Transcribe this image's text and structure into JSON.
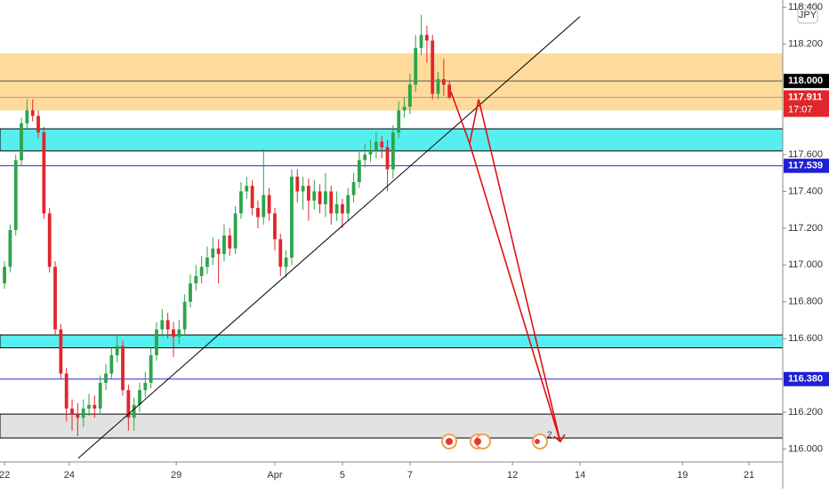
{
  "chart_data": {
    "type": "candlestick",
    "currency": "JPY",
    "xlim": [
      -0.8,
      138.2
    ],
    "ylim": [
      115.93,
      118.44
    ],
    "xticks": [
      {
        "value": 0,
        "label": "22"
      },
      {
        "value": 11.5,
        "label": "24"
      },
      {
        "value": 30.5,
        "label": "29"
      },
      {
        "value": 48,
        "label": "Apr"
      },
      {
        "value": 60,
        "label": "5"
      },
      {
        "value": 72,
        "label": "7"
      },
      {
        "value": 90.2,
        "label": "12"
      },
      {
        "value": 102.2,
        "label": "14"
      },
      {
        "value": 120.4,
        "label": "19"
      },
      {
        "value": 132.2,
        "label": "21"
      }
    ],
    "yticks": [
      {
        "value": 118.4,
        "label": "118.400"
      },
      {
        "value": 118.2,
        "label": "118.200"
      },
      {
        "value": 117.6,
        "label": "117.600"
      },
      {
        "value": 117.4,
        "label": "117.400"
      },
      {
        "value": 117.2,
        "label": "117.200"
      },
      {
        "value": 117.0,
        "label": "117.000"
      },
      {
        "value": 116.8,
        "label": "116.800"
      },
      {
        "value": 116.6,
        "label": "116.600"
      },
      {
        "value": 116.2,
        "label": "116.200"
      },
      {
        "value": 116.0,
        "label": "116.000"
      }
    ],
    "grid": false,
    "up_color": "#2da44a",
    "down_color": "#e0262b",
    "open": [
      116.9,
      116.99,
      117.19,
      117.57,
      117.77,
      117.84,
      117.81,
      117.72,
      117.28,
      116.99,
      116.65,
      116.41,
      116.22,
      116.19,
      116.17,
      116.22,
      116.24,
      116.22,
      116.36,
      116.41,
      116.51,
      116.56,
      116.32,
      116.17,
      116.24,
      116.32,
      116.36,
      116.51,
      116.65,
      116.7,
      116.65,
      116.61,
      116.65,
      116.8,
      116.9,
      116.94,
      116.99,
      117.04,
      117.09,
      117.06,
      117.16,
      117.09,
      117.28,
      117.4,
      117.43,
      117.31,
      117.26,
      117.38,
      117.28,
      117.14,
      116.99,
      117.04,
      117.48,
      117.4,
      117.43,
      117.35,
      117.4,
      117.33,
      117.4,
      117.28,
      117.33,
      117.28,
      117.38,
      117.45,
      117.57,
      117.6,
      117.62,
      117.67,
      117.64,
      117.52,
      117.72,
      117.84,
      117.86,
      117.98,
      118.18,
      118.25,
      118.22,
      117.93,
      118.01,
      117.98
    ],
    "high": [
      117.02,
      117.22,
      117.6,
      117.8,
      117.9,
      117.9,
      117.84,
      117.75,
      117.31,
      117.02,
      116.68,
      116.44,
      116.27,
      116.25,
      116.27,
      116.3,
      116.29,
      116.4,
      116.46,
      116.55,
      116.62,
      116.59,
      116.35,
      116.28,
      116.36,
      116.42,
      116.55,
      116.69,
      116.76,
      116.74,
      116.69,
      116.7,
      116.84,
      116.95,
      117.0,
      117.05,
      117.1,
      117.15,
      117.14,
      117.22,
      117.2,
      117.32,
      117.45,
      117.48,
      117.46,
      117.35,
      117.63,
      117.42,
      117.31,
      117.17,
      117.08,
      117.52,
      117.52,
      117.48,
      117.47,
      117.46,
      117.44,
      117.5,
      117.43,
      117.4,
      117.36,
      117.42,
      117.5,
      117.62,
      117.66,
      117.68,
      117.72,
      117.7,
      117.68,
      117.76,
      117.89,
      117.91,
      118.04,
      118.25,
      118.36,
      118.3,
      118.25,
      118.05,
      118.12,
      118.0
    ],
    "low": [
      116.87,
      116.96,
      117.16,
      117.54,
      117.74,
      117.78,
      117.69,
      117.25,
      116.96,
      116.62,
      116.38,
      116.15,
      116.1,
      116.07,
      116.12,
      116.18,
      116.17,
      116.19,
      116.32,
      116.38,
      116.47,
      116.29,
      116.1,
      116.1,
      116.2,
      116.28,
      116.33,
      116.48,
      116.61,
      116.6,
      116.5,
      116.57,
      116.62,
      116.77,
      116.86,
      116.9,
      116.95,
      117.0,
      116.9,
      117.02,
      117.05,
      117.06,
      117.25,
      117.36,
      117.27,
      117.2,
      117.22,
      117.24,
      117.08,
      116.94,
      116.93,
      117.0,
      117.34,
      117.3,
      117.24,
      117.3,
      117.28,
      117.26,
      117.22,
      117.24,
      117.2,
      117.24,
      117.34,
      117.42,
      117.53,
      117.56,
      117.58,
      117.58,
      117.4,
      117.47,
      117.69,
      117.8,
      117.82,
      117.94,
      118.14,
      118.1,
      117.9,
      117.9,
      117.92,
      117.9
    ],
    "close": [
      116.99,
      117.19,
      117.57,
      117.77,
      117.84,
      117.81,
      117.72,
      117.28,
      116.99,
      116.65,
      116.41,
      116.22,
      116.19,
      116.17,
      116.22,
      116.24,
      116.22,
      116.36,
      116.41,
      116.51,
      116.56,
      116.32,
      116.17,
      116.24,
      116.32,
      116.36,
      116.51,
      116.65,
      116.7,
      116.65,
      116.61,
      116.65,
      116.8,
      116.9,
      116.94,
      116.99,
      117.04,
      117.09,
      117.06,
      117.16,
      117.09,
      117.28,
      117.4,
      117.43,
      117.31,
      117.26,
      117.38,
      117.28,
      117.14,
      116.99,
      117.04,
      117.48,
      117.4,
      117.43,
      117.35,
      117.4,
      117.33,
      117.4,
      117.28,
      117.33,
      117.28,
      117.38,
      117.45,
      117.57,
      117.6,
      117.62,
      117.67,
      117.64,
      117.52,
      117.72,
      117.84,
      117.86,
      117.98,
      118.18,
      118.25,
      118.22,
      117.93,
      118.01,
      117.98,
      117.91
    ],
    "zones": [
      {
        "from": 118.15,
        "to": 117.84,
        "color": "#fedb9b",
        "border": "none"
      },
      {
        "from": 117.74,
        "to": 117.62,
        "color": "#57eef0",
        "border": "#000000"
      },
      {
        "from": 116.62,
        "to": 116.55,
        "color": "#57eef0",
        "border": "#000000"
      },
      {
        "from": 116.19,
        "to": 116.06,
        "color": "#e2e2e2",
        "border": "#000000"
      }
    ],
    "lines": [
      {
        "value": 118.0,
        "color": "#555555"
      },
      {
        "value": 117.911,
        "color": "#c98c8c"
      },
      {
        "value": 117.539,
        "color": "#2a2ad0"
      },
      {
        "value": 116.38,
        "color": "#2a2ad0"
      }
    ],
    "price_labels": [
      {
        "value": 118.0,
        "label": "118.000",
        "color": "#000000"
      },
      {
        "value": 117.911,
        "label": "117.911",
        "sub": "17:07",
        "color": "#e0262b"
      },
      {
        "value": 117.539,
        "label": "117.539",
        "color": "#1f1fd6"
      },
      {
        "value": 116.38,
        "label": "116.380",
        "color": "#1f1fd6"
      }
    ],
    "trendline": {
      "x": [
        13.1,
        102.2
      ],
      "y": [
        115.95,
        118.35
      ],
      "color": "#000000"
    },
    "projections": [
      {
        "x": [
          79.3,
          82.6,
          84.2,
          98.7
        ],
        "y": [
          117.94,
          117.66,
          117.9,
          116.04
        ],
        "color": "#e01010"
      },
      {
        "x": [
          82.6,
          98.7
        ],
        "y": [
          117.66,
          116.04
        ],
        "color": "#e01010"
      }
    ],
    "event_badge": "2"
  }
}
